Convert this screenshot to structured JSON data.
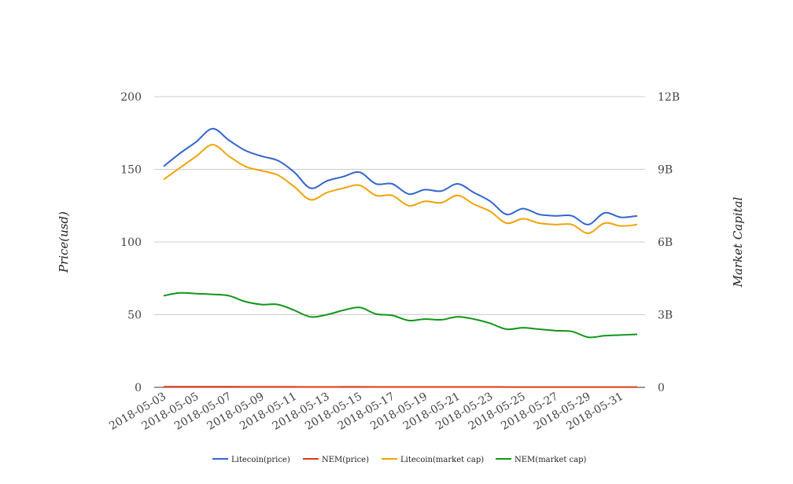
{
  "chart_data": {
    "type": "line",
    "title": "",
    "xlabel": "",
    "ylabel": "Price(usd)",
    "y2label": "Market Capital",
    "ylim": [
      0,
      200
    ],
    "y2lim": [
      0,
      12000000000
    ],
    "yticks": [
      "0",
      "50",
      "100",
      "150",
      "200"
    ],
    "y2ticks": [
      "0",
      "3B",
      "6B",
      "9B",
      "12B"
    ],
    "grid": true,
    "legend_position": "bottom",
    "x": [
      "2018-05-03",
      "2018-05-04",
      "2018-05-05",
      "2018-05-06",
      "2018-05-07",
      "2018-05-08",
      "2018-05-09",
      "2018-05-10",
      "2018-05-11",
      "2018-05-12",
      "2018-05-13",
      "2018-05-14",
      "2018-05-15",
      "2018-05-16",
      "2018-05-17",
      "2018-05-18",
      "2018-05-19",
      "2018-05-20",
      "2018-05-21",
      "2018-05-22",
      "2018-05-23",
      "2018-05-24",
      "2018-05-25",
      "2018-05-26",
      "2018-05-27",
      "2018-05-28",
      "2018-05-29",
      "2018-05-30",
      "2018-05-31",
      "2018-06-01"
    ],
    "xtick_labels": [
      "2018-05-03",
      "2018-05-05",
      "2018-05-07",
      "2018-05-09",
      "2018-05-11",
      "2018-05-13",
      "2018-05-15",
      "2018-05-17",
      "2018-05-19",
      "2018-05-21",
      "2018-05-23",
      "2018-05-25",
      "2018-05-27",
      "2018-05-29",
      "2018-05-31"
    ],
    "series": [
      {
        "name": "Litecoin(price)",
        "axis": "left",
        "color": "#3366cc",
        "values": [
          152,
          161,
          169,
          178,
          170,
          163,
          159,
          156,
          148,
          137,
          142,
          145,
          148,
          140,
          140,
          133,
          136,
          135,
          140,
          134,
          128,
          119,
          123,
          119,
          118,
          118,
          112,
          120,
          117,
          118
        ]
      },
      {
        "name": "NEM(price)",
        "axis": "left",
        "color": "#dc3912",
        "values": [
          0.38,
          0.4,
          0.39,
          0.38,
          0.37,
          0.34,
          0.33,
          0.33,
          0.31,
          0.28,
          0.29,
          0.31,
          0.32,
          0.29,
          0.29,
          0.27,
          0.27,
          0.27,
          0.28,
          0.27,
          0.26,
          0.24,
          0.24,
          0.23,
          0.23,
          0.22,
          0.2,
          0.21,
          0.21,
          0.21
        ]
      },
      {
        "name": "Litecoin(market cap)",
        "axis": "right",
        "color": "#f0a30a",
        "values": [
          8580000000,
          9060000000,
          9540000000,
          10020000000,
          9540000000,
          9120000000,
          8940000000,
          8760000000,
          8280000000,
          7740000000,
          8040000000,
          8220000000,
          8340000000,
          7920000000,
          7920000000,
          7500000000,
          7680000000,
          7620000000,
          7920000000,
          7560000000,
          7260000000,
          6780000000,
          6960000000,
          6780000000,
          6720000000,
          6720000000,
          6360000000,
          6780000000,
          6660000000,
          6720000000
        ]
      },
      {
        "name": "NEM(market cap)",
        "axis": "right",
        "color": "#109618",
        "values": [
          3780000000,
          3900000000,
          3870000000,
          3840000000,
          3780000000,
          3540000000,
          3420000000,
          3420000000,
          3180000000,
          2910000000,
          3000000000,
          3180000000,
          3300000000,
          3030000000,
          2970000000,
          2760000000,
          2820000000,
          2790000000,
          2910000000,
          2820000000,
          2640000000,
          2400000000,
          2460000000,
          2400000000,
          2340000000,
          2310000000,
          2070000000,
          2130000000,
          2160000000,
          2190000000
        ]
      }
    ]
  }
}
